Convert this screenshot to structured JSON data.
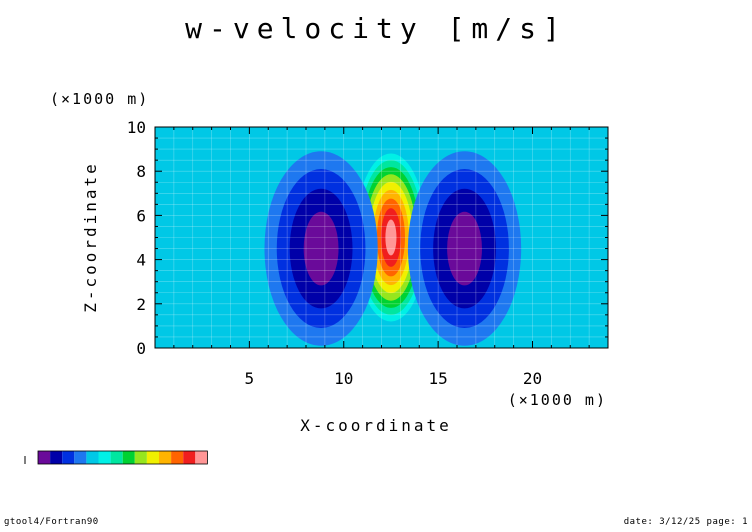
{
  "chart_data": {
    "type": "heatmap",
    "title": "w-velocity [m/s]",
    "xlabel": "X-coordinate",
    "ylabel": "Z-coordinate",
    "x_unit": "(×1000 m)",
    "y_unit": "(×1000 m)",
    "xlim": [
      0,
      24
    ],
    "ylim": [
      0,
      10
    ],
    "xticks": [
      5,
      10,
      15,
      20
    ],
    "yticks": [
      0,
      2,
      4,
      6,
      8,
      10
    ],
    "grid": true,
    "levels_colors": [
      "#6a0a9a",
      "#0000a8",
      "#0030e0",
      "#1e78f0",
      "#00c8e6",
      "#00f0e6",
      "#00e6a0",
      "#00d232",
      "#96e61e",
      "#f0f000",
      "#ffb400",
      "#ff6400",
      "#f01e1e",
      "#ff9696"
    ],
    "features": [
      {
        "kind": "updraft",
        "x_center": 12.5,
        "z_center": 5.0,
        "x_half_width": 1.9,
        "z_half_height": 3.8,
        "peak_level": 13
      },
      {
        "kind": "downdraft",
        "x_center": 8.8,
        "z_center": 4.5,
        "x_half_width": 3.0,
        "z_half_height": 4.4,
        "peak_level": 0
      },
      {
        "kind": "downdraft",
        "x_center": 16.4,
        "z_center": 4.5,
        "x_half_width": 3.0,
        "z_half_height": 4.4,
        "peak_level": 0
      }
    ]
  },
  "footer": {
    "left": "gtool4/Fortran90",
    "right": "date: 3/12/25 page: 1"
  }
}
